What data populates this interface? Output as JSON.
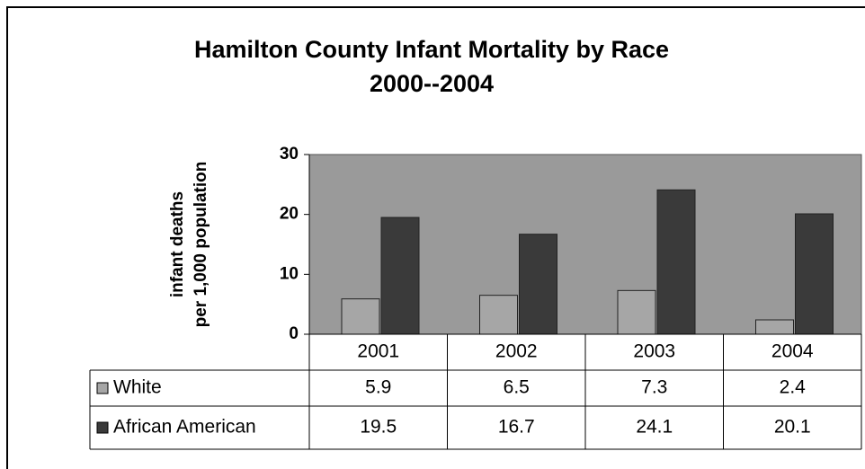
{
  "chart_data": {
    "type": "bar",
    "title": "Hamilton County Infant Mortality by Race",
    "subtitle": "2000--2004",
    "ylabel": [
      "infant deaths",
      "per 1,000 population"
    ],
    "categories": [
      "2001",
      "2002",
      "2003",
      "2004"
    ],
    "series": [
      {
        "name": "White",
        "color": "#a6a6a6",
        "values": [
          5.9,
          6.5,
          7.3,
          2.4
        ]
      },
      {
        "name": "African American",
        "color": "#3a3a3a",
        "values": [
          19.5,
          16.7,
          24.1,
          20.1
        ]
      }
    ],
    "ylim": [
      0,
      30
    ],
    "yticks": [
      0,
      10,
      20,
      30
    ],
    "grid": false,
    "plot_background": "#9a9a9a"
  }
}
